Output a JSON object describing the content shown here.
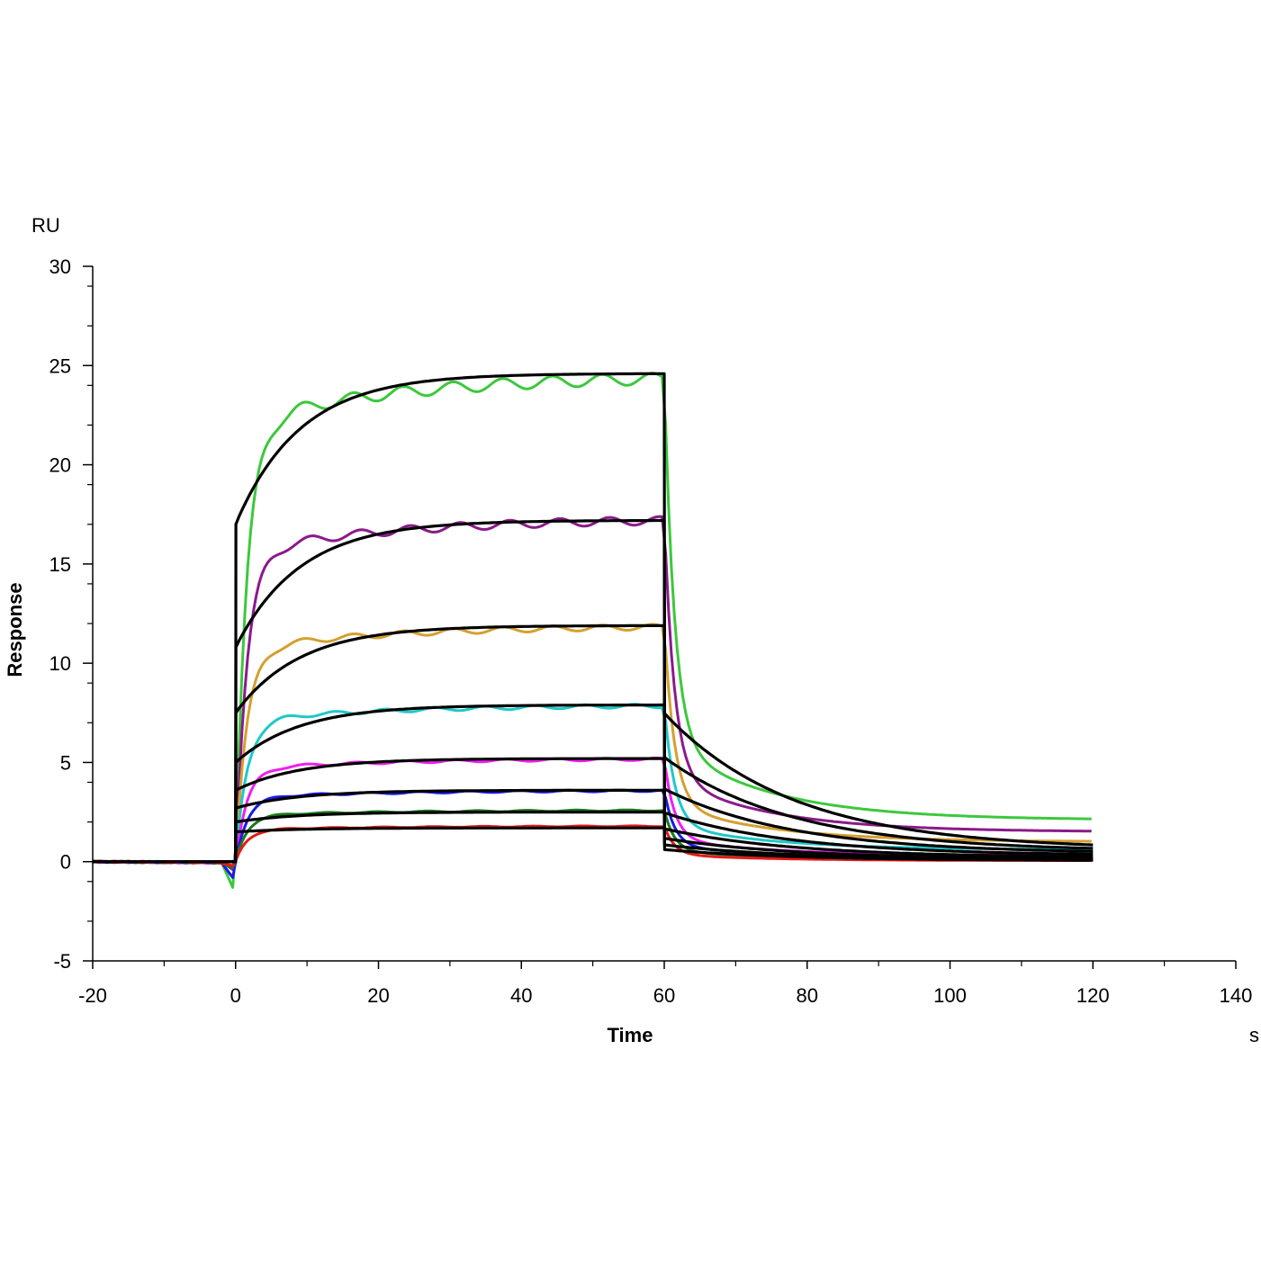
{
  "chart_data": {
    "type": "line",
    "title": "",
    "xlabel": "Time",
    "ylabel": "Response",
    "x_unit": "s",
    "y_unit": "RU",
    "xlim": [
      -20,
      140
    ],
    "ylim": [
      -5,
      30
    ],
    "x_ticks": [
      "-20",
      "0",
      "20",
      "40",
      "60",
      "80",
      "100",
      "120",
      "140"
    ],
    "y_ticks": [
      "-5",
      "0",
      "5",
      "10",
      "15",
      "20",
      "25",
      "30"
    ],
    "x_tick_values": [
      -20,
      0,
      20,
      40,
      60,
      80,
      100,
      120,
      140
    ],
    "y_tick_values": [
      -5,
      0,
      5,
      10,
      15,
      20,
      25,
      30
    ],
    "legend": "none",
    "grid": false,
    "injection_start": 0,
    "dissociation_start": 60,
    "end_time": 120,
    "series": [
      {
        "name": "green",
        "color": "#3cc83c",
        "kind": "measured",
        "plateau": 24.5,
        "dip": -1.3,
        "end": 2.1
      },
      {
        "name": "purple",
        "color": "#8b1a8b",
        "kind": "measured",
        "plateau": 17.3,
        "dip": -0.4,
        "end": 1.5
      },
      {
        "name": "gold",
        "color": "#d4a030",
        "kind": "measured",
        "plateau": 11.9,
        "dip": -0.3,
        "end": 1.0
      },
      {
        "name": "cyan",
        "color": "#20c8c8",
        "kind": "measured",
        "plateau": 7.9,
        "dip": -0.3,
        "end": 0.6
      },
      {
        "name": "magenta",
        "color": "#ee20ee",
        "kind": "measured",
        "plateau": 5.2,
        "dip": -0.3,
        "end": 0.3
      },
      {
        "name": "blue",
        "color": "#1a1ae6",
        "kind": "measured",
        "plateau": 3.6,
        "dip": -0.8,
        "end": 0.2
      },
      {
        "name": "dark-green",
        "color": "#1a7a1a",
        "kind": "measured",
        "plateau": 2.6,
        "dip": -0.3,
        "end": 0.1
      },
      {
        "name": "red",
        "color": "#e61a1a",
        "kind": "measured",
        "plateau": 1.8,
        "dip": -0.2,
        "end": 0.05
      },
      {
        "name": "fit-1",
        "color": "#000000",
        "kind": "fit",
        "start": 17.0,
        "plateau": 24.6,
        "end": 0.6
      },
      {
        "name": "fit-2",
        "color": "#000000",
        "kind": "fit",
        "start": 10.8,
        "plateau": 17.2,
        "end": 0.5
      },
      {
        "name": "fit-3",
        "color": "#000000",
        "kind": "fit",
        "start": 7.5,
        "plateau": 11.9,
        "end": 0.4
      },
      {
        "name": "fit-4",
        "color": "#000000",
        "kind": "fit",
        "start": 5.0,
        "plateau": 7.9,
        "end": 0.3
      },
      {
        "name": "fit-5",
        "color": "#000000",
        "kind": "fit",
        "start": 3.6,
        "plateau": 5.2,
        "end": 0.2
      },
      {
        "name": "fit-6",
        "color": "#000000",
        "kind": "fit",
        "start": 2.7,
        "plateau": 3.6,
        "end": 0.12
      },
      {
        "name": "fit-7",
        "color": "#000000",
        "kind": "fit",
        "start": 2.0,
        "plateau": 2.5,
        "end": 0.08
      },
      {
        "name": "fit-8",
        "color": "#000000",
        "kind": "fit",
        "start": 1.5,
        "plateau": 1.7,
        "end": 0.05
      }
    ]
  }
}
